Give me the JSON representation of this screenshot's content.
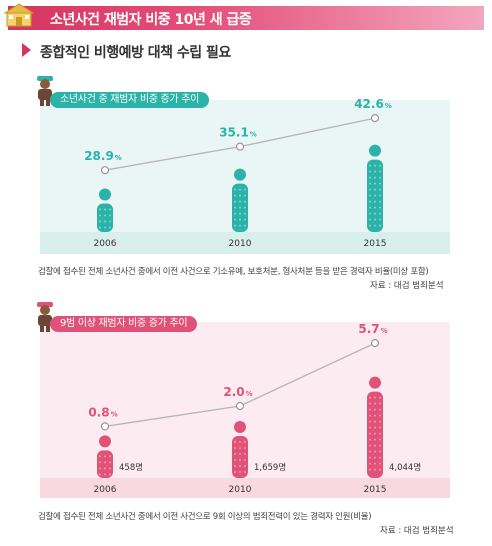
{
  "header": {
    "title": "소년사건 재범자 비중 10년 새 급증"
  },
  "subtitle": "종합적인 비행예방 대책 수립 필요",
  "chart_data": [
    {
      "type": "line",
      "title": "소년사건 중 재범자 비중 증가 추이",
      "categories": [
        "2006",
        "2010",
        "2015"
      ],
      "values": [
        28.9,
        35.1,
        42.6
      ],
      "value_labels": [
        "28.9",
        "35.1",
        "42.6"
      ],
      "unit": "%",
      "note": "검찰에 접수된 전체 소년사건 중에서 이전 사건으로 기소유예, 보호처분, 형사처분 등을 받은 경력자 비율(미상 포함)",
      "source": "자료 : 대검 범죄분석",
      "colors": {
        "accent": "#2bb3a9",
        "light": "#9fdbd5",
        "bg": "#e9f6f5"
      }
    },
    {
      "type": "line",
      "title": "9범 이상 재범자 비중 증가 추이",
      "categories": [
        "2006",
        "2010",
        "2015"
      ],
      "values": [
        0.8,
        2.0,
        5.7
      ],
      "value_labels": [
        "0.8",
        "2.0",
        "5.7"
      ],
      "unit": "%",
      "counts": [
        "458명",
        "1,659명",
        "4,044명"
      ],
      "note": "검찰에 접수된 전체 소년사건 중에서 이전 사건으로 9회 이상의 범죄전력이 있는 경력자 인원(비율)",
      "source": "자료 : 대검 범죄분석",
      "colors": {
        "accent": "#e05278",
        "light": "#f6a7bd",
        "bg": "#fcebf0"
      }
    }
  ]
}
